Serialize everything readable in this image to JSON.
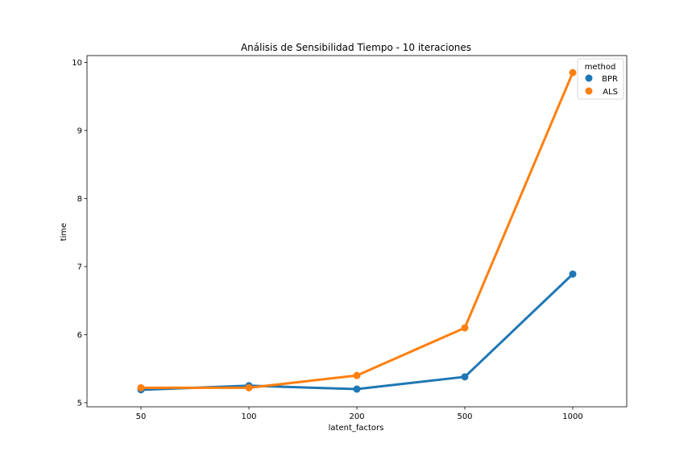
{
  "chart_data": {
    "type": "line",
    "title": "Análisis de Sensibilidad Tiempo - 10 iteraciones",
    "xlabel": "latent_factors",
    "ylabel": "time",
    "categories": [
      "50",
      "100",
      "200",
      "500",
      "1000"
    ],
    "yticks": [
      "5",
      "6",
      "7",
      "8",
      "9",
      "10"
    ],
    "ylim": [
      4.94,
      10.1
    ],
    "grid": false,
    "legend": {
      "title": "method",
      "placement": "top-right"
    },
    "series": [
      {
        "name": "BPR",
        "color": "#1f77b4",
        "values": [
          5.19,
          5.25,
          5.2,
          5.38,
          6.89
        ]
      },
      {
        "name": "ALS",
        "color": "#ff7f0e",
        "values": [
          5.22,
          5.22,
          5.4,
          6.1,
          9.85
        ]
      }
    ]
  }
}
